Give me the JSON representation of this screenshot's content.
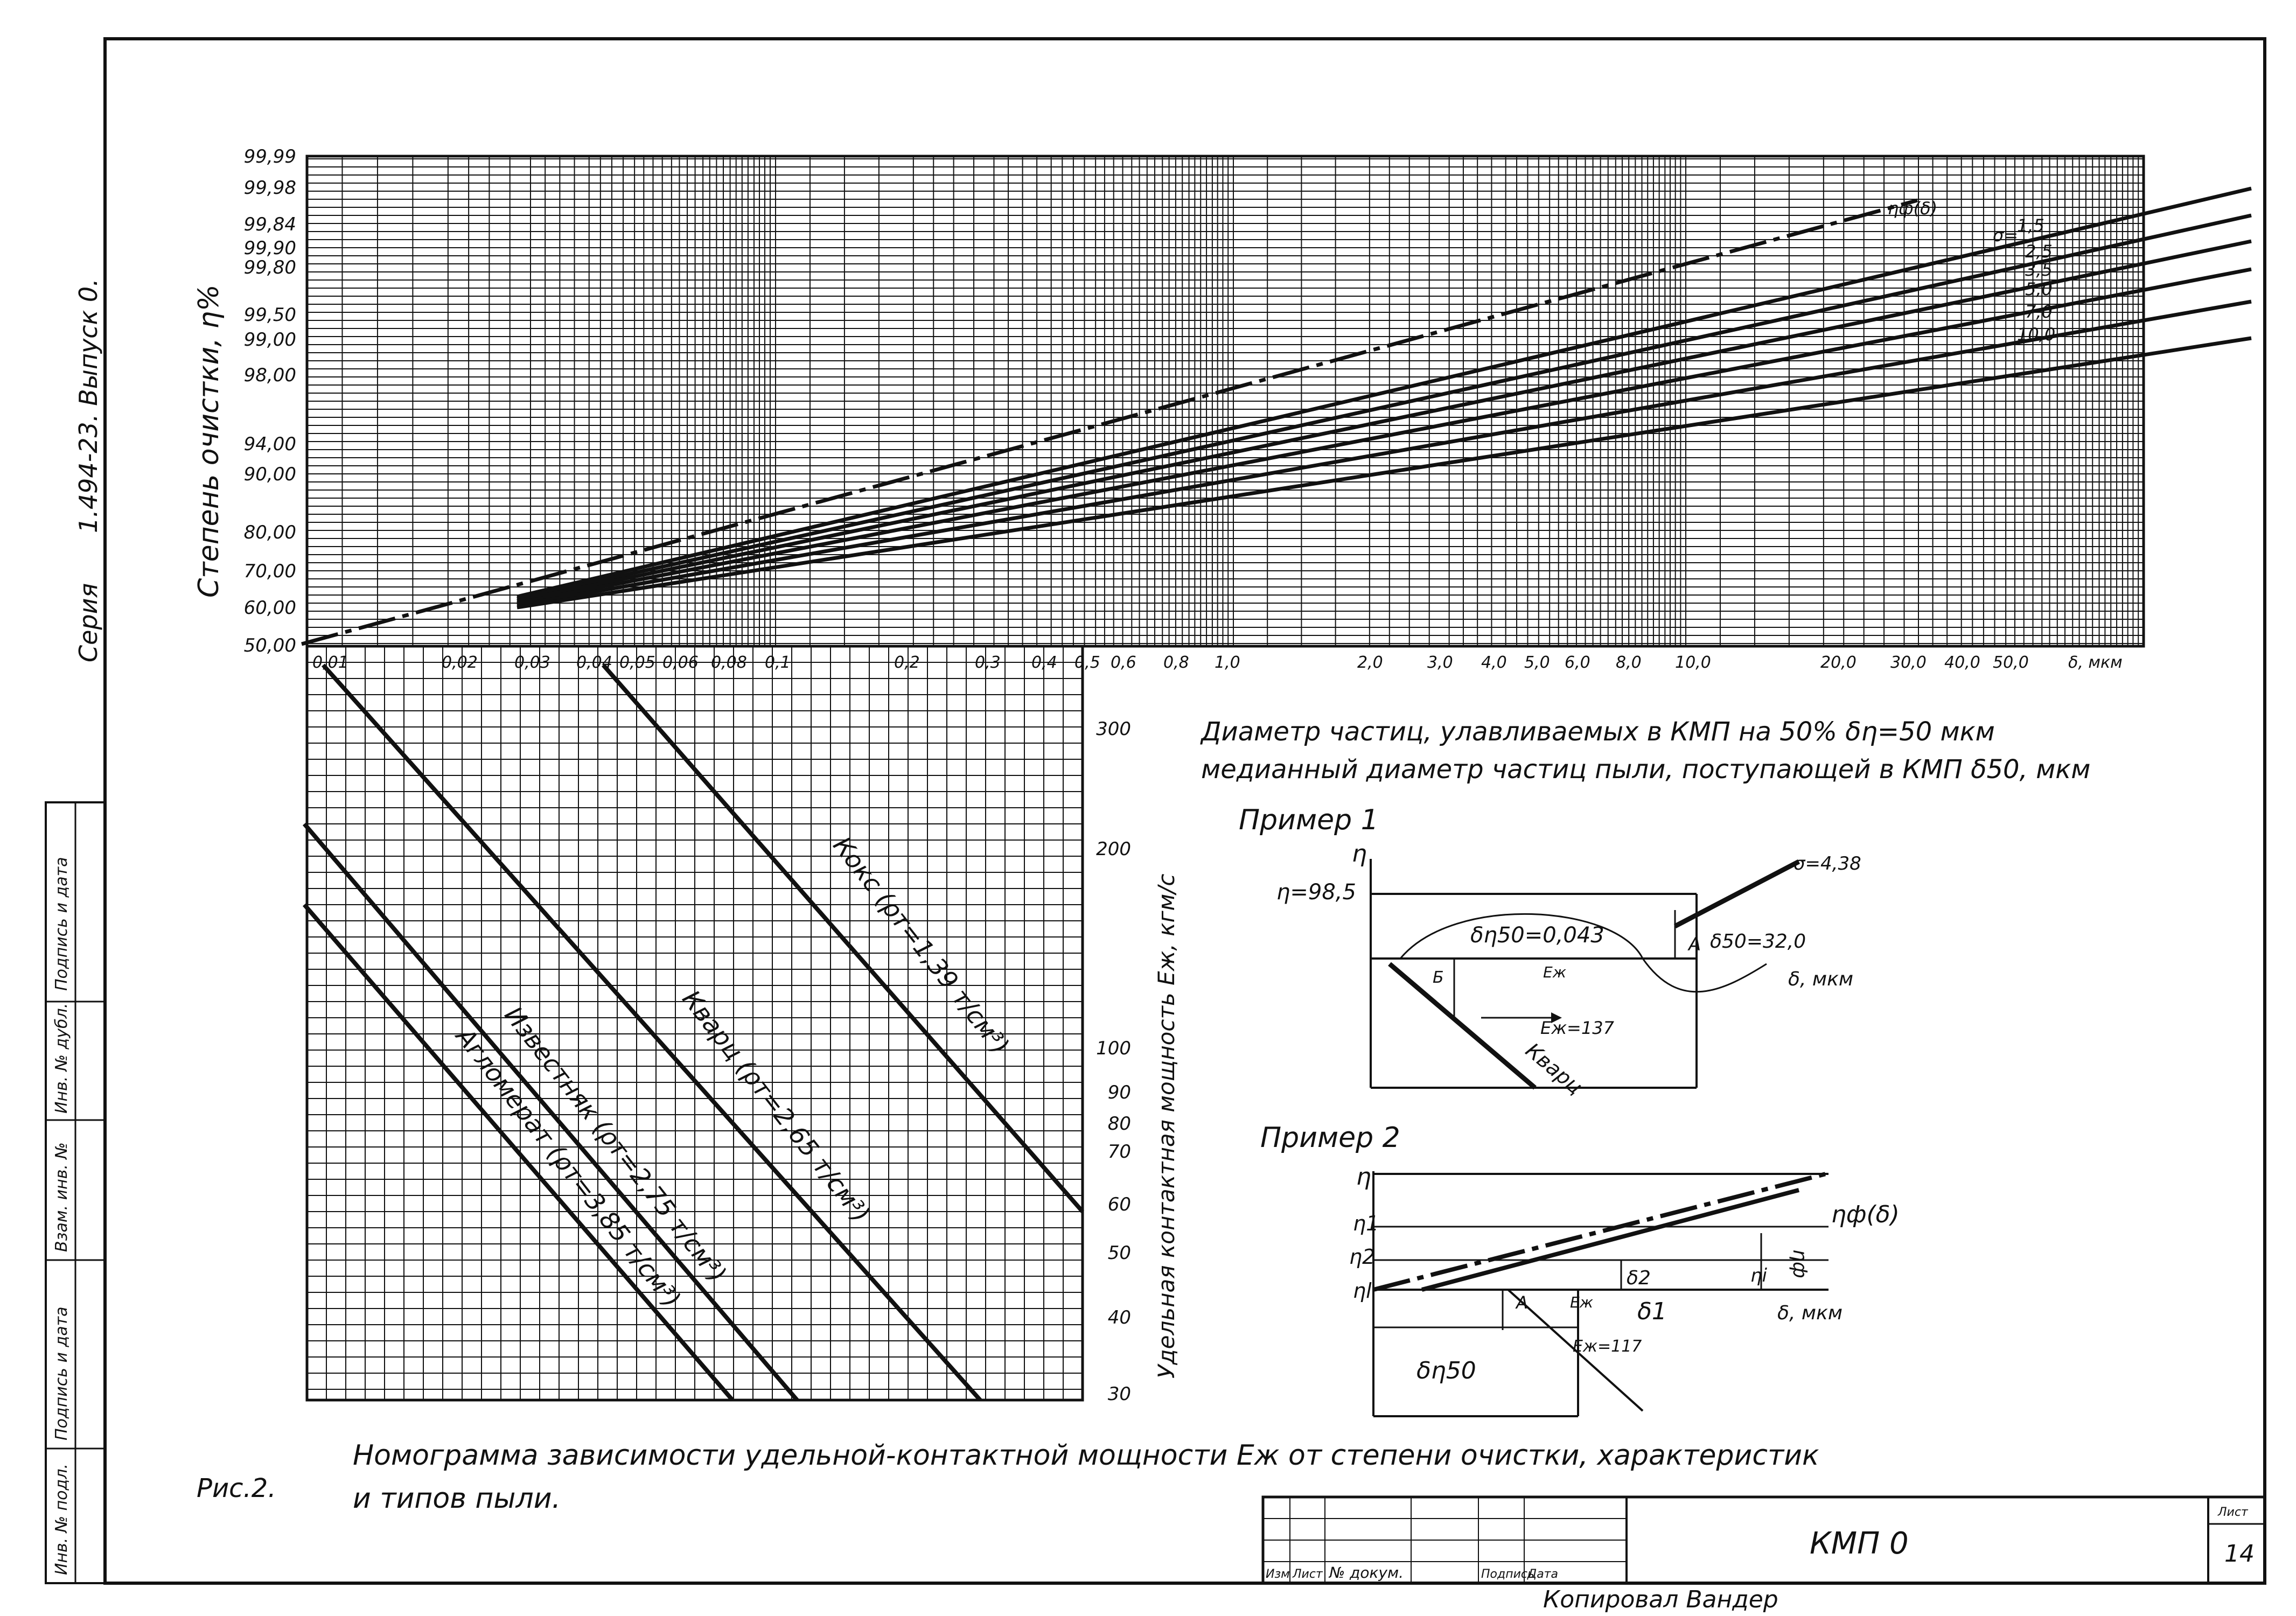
{
  "side": {
    "series": "Серия",
    "code": "1.494-23. Выпуск 0.",
    "stamp_cells": [
      "Подпись и дата",
      "Инв. № дубл.",
      "Взам. инв. №",
      "Подпись и дата",
      "Инв. № подл."
    ]
  },
  "top": {
    "ylabel": "Степень очистки, ",
    "ylabel_symbol": "η%",
    "yticks": [
      "99,99",
      "99,98",
      "99,84",
      "99,90",
      "99,80",
      "99,50",
      "99,00",
      "98,00",
      "94,00",
      "90,00",
      "80,00",
      "70,00",
      "60,00",
      "50,00"
    ],
    "xticks": [
      "0,01",
      "0,02",
      "0,03",
      "0,04",
      "0,05",
      "0,06",
      "0,08",
      "0,1",
      "0,2",
      "0,3",
      "0,4",
      "0,5",
      "0,6",
      "0,8",
      "1,0",
      "2,0",
      "3,0",
      "4,0",
      "5,0",
      "6,0",
      "8,0",
      "10,0",
      "20,0",
      "30,0",
      "40,0",
      "50,0"
    ],
    "xunit": "δ, мкм",
    "curve_label": "ηф(δ)",
    "sigma_prefix": "σ=",
    "sigma_labels": [
      "1,5",
      "2,5",
      "3,5",
      "5,0",
      "7,0",
      "10,0"
    ]
  },
  "bottom": {
    "right_ylabel": "Удельная контактная мощность Eж, кгм/с",
    "right_yticks": [
      "300",
      "200",
      "100",
      "90",
      "80",
      "70",
      "60",
      "50",
      "40",
      "30"
    ],
    "lines": [
      {
        "label": "Кокс (ρт=1,39 т/см³)"
      },
      {
        "label": "Кварц (ρт=2,65 т/см³)"
      },
      {
        "label": "Известняк (ρт=2,75 т/см³)"
      },
      {
        "label": "Агломерат (ρт=3,85 т/см³)"
      }
    ]
  },
  "notes": {
    "line1": "Диаметр частиц, улавливаемых в КМП на 50% δη=50 мкм",
    "line2": "медианный диаметр частиц пыли, поступающей в КМП δ50, мкм"
  },
  "example1": {
    "title": "Пример 1",
    "eta": "η",
    "eta_value": "η=98,5",
    "sigma": "σ=4,38",
    "d_eta50": "δη50=0,043",
    "point_a": "A",
    "d50": "δ50=32,0",
    "point_b": "Б",
    "e_zh": "Eж",
    "d_unit": "δ, мкм",
    "e_value": "Eж=137",
    "line_label": "Кварц"
  },
  "example2": {
    "title": "Пример 2",
    "eta": "η",
    "eta1": "η1",
    "eta2": "η2",
    "eta_l": "ηl",
    "curve": "ηф(δ)",
    "eta_f": "ηф",
    "eta_i": "ηi",
    "d2": "δ2",
    "point_a": "A",
    "e_zh": "Eж",
    "d1": "δ1",
    "d_unit": "δ, мкм",
    "e_value": "Eж=117",
    "d_eta50": "δη50"
  },
  "caption": {
    "fig": "Рис.2.",
    "line1": "Номограмма зависимости удельной-контактной мощности Eж от степени очистки, характеристик",
    "line2": "и типов пыли."
  },
  "title_block": {
    "heads": [
      "Изм",
      "Лист",
      "№ докум.",
      "Подпись",
      "Дата"
    ],
    "title": "КМП 0",
    "sheet_label": "Лист",
    "sheet_no": "14",
    "copied": "Копировал Вандер"
  }
}
